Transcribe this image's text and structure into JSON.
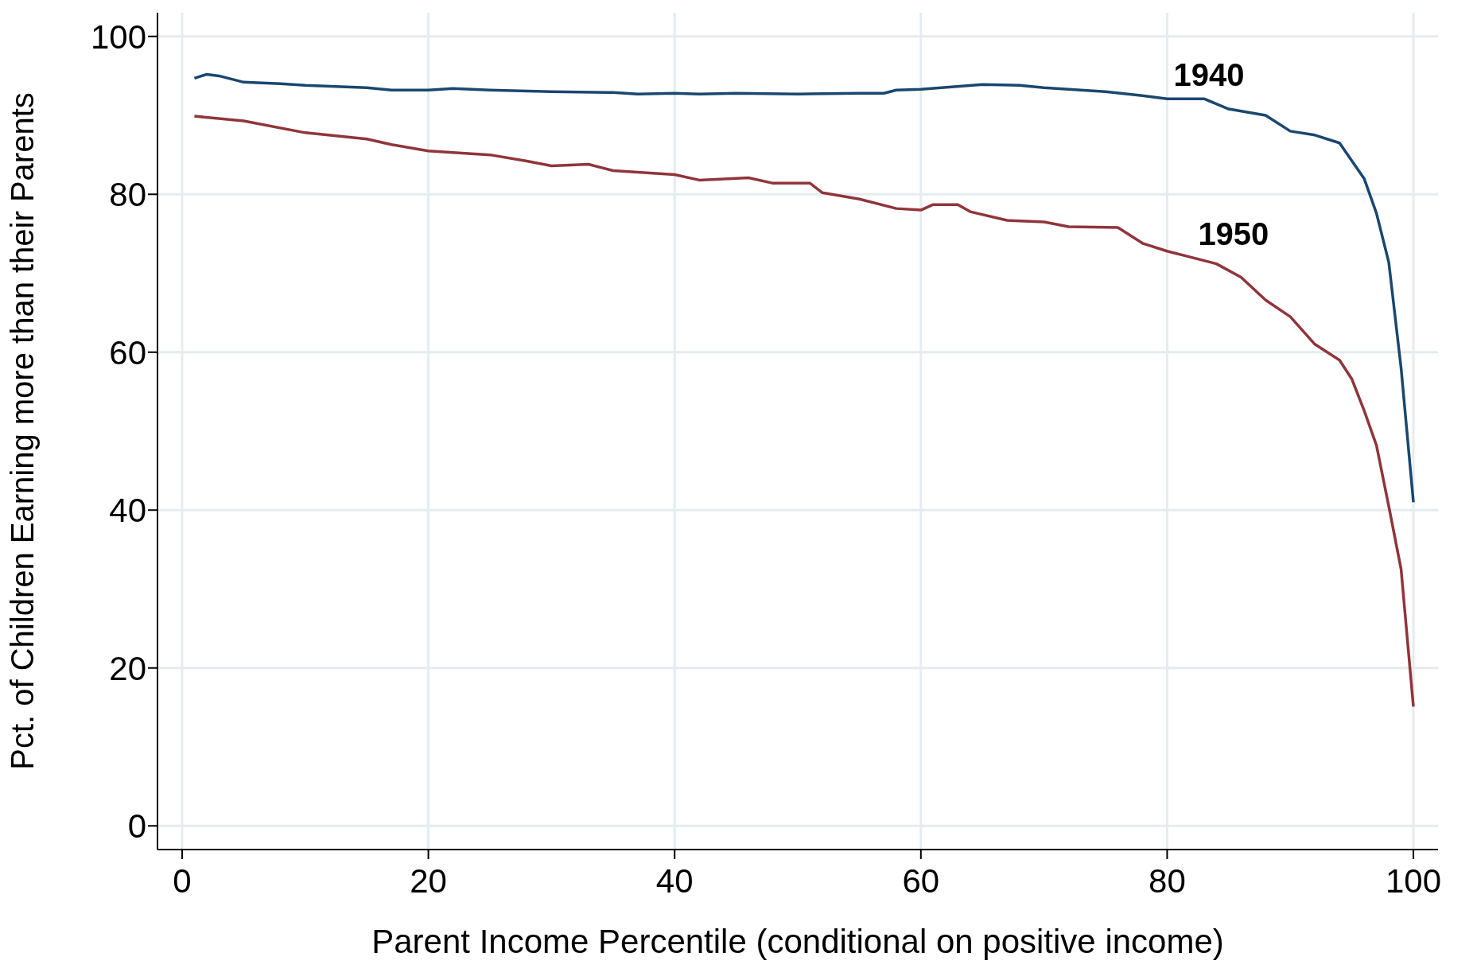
{
  "chart_data": {
    "type": "line",
    "xlabel": "Parent Income Percentile (conditional on positive income)",
    "ylabel": "Pct. of Children Earning more than their Parents",
    "xlim": [
      -2,
      102
    ],
    "xticks": [
      0,
      20,
      40,
      60,
      80,
      100
    ],
    "ylim": [
      -3,
      103
    ],
    "yticks": [
      0,
      20,
      40,
      60,
      80,
      100
    ],
    "grid": true,
    "legend": false,
    "marker": "none",
    "line_style": "solid",
    "series": [
      {
        "name": "1940",
        "color": "#1a476f",
        "x": [
          1,
          2,
          3,
          5,
          8,
          10,
          15,
          17,
          20,
          22,
          25,
          30,
          35,
          37,
          40,
          42,
          45,
          50,
          55,
          57,
          58,
          60,
          65,
          68,
          70,
          75,
          78,
          80,
          83,
          85,
          88,
          90,
          92,
          94,
          96,
          97,
          98,
          99,
          100
        ],
        "values": [
          94.7,
          95.2,
          95,
          94.2,
          94,
          93.8,
          93.5,
          93.2,
          93.2,
          93.4,
          93.2,
          93,
          92.9,
          92.7,
          92.8,
          92.7,
          92.8,
          92.7,
          92.8,
          92.8,
          93.2,
          93.3,
          93.9,
          93.8,
          93.5,
          93,
          92.5,
          92.1,
          92.1,
          90.8,
          90,
          88,
          87.5,
          86.5,
          82,
          77.6,
          71.4,
          58,
          41
        ]
      },
      {
        "name": "1950",
        "color": "#90353b",
        "x": [
          1,
          5,
          10,
          15,
          17,
          20,
          25,
          28,
          30,
          33,
          35,
          40,
          42,
          46,
          48,
          51,
          52,
          55,
          58,
          60,
          61,
          63,
          64,
          67,
          70,
          72,
          76,
          78,
          80,
          82,
          84,
          86,
          88,
          90,
          92,
          94,
          95,
          96,
          97,
          98,
          99,
          100
        ],
        "values": [
          89.9,
          89.3,
          87.8,
          87,
          86.3,
          85.5,
          85,
          84.2,
          83.6,
          83.8,
          83,
          82.5,
          81.8,
          82.1,
          81.4,
          81.4,
          80.2,
          79.4,
          78.2,
          78,
          78.7,
          78.7,
          77.8,
          76.7,
          76.5,
          75.9,
          75.8,
          73.8,
          72.8,
          72,
          71.2,
          69.5,
          66.6,
          64.5,
          61,
          59,
          56.6,
          52.6,
          48.2,
          40.5,
          32.5,
          15.1
        ]
      }
    ]
  }
}
